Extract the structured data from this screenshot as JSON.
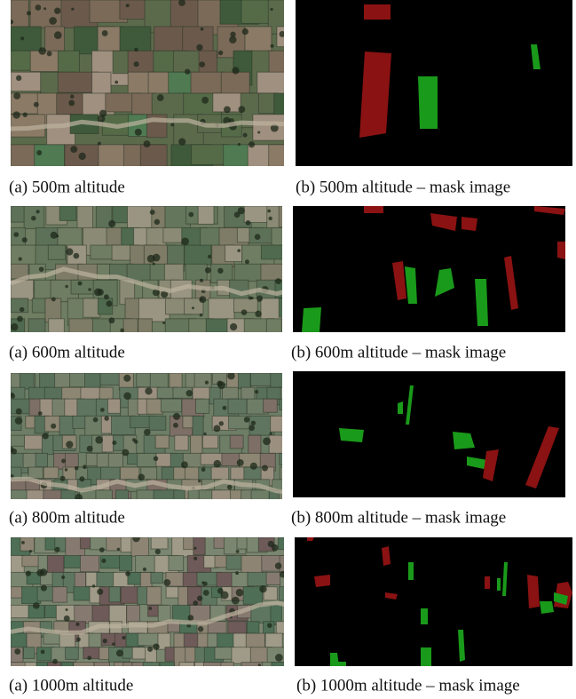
{
  "figure": {
    "rows": [
      {
        "left_caption": "(a) 500m altitude",
        "right_caption": "(b) 500m altitude – mask image"
      },
      {
        "left_caption": "(a) 600m altitude",
        "right_caption": "(b) 600m altitude – mask image"
      },
      {
        "left_caption": "(a) 800m altitude",
        "right_caption": "(b) 800m altitude – mask image"
      },
      {
        "left_caption": "(a) 1000m altitude",
        "right_caption": "(b) 1000m altitude – mask image"
      }
    ]
  }
}
